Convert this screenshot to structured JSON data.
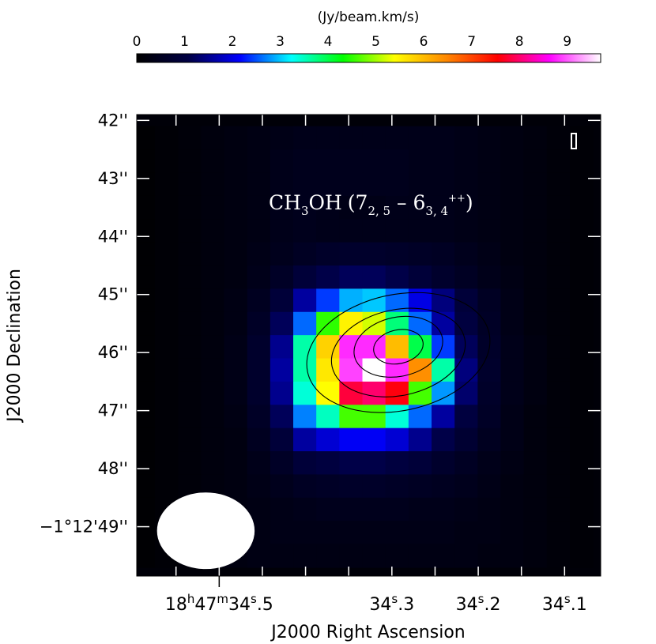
{
  "chart_data": {
    "type": "heatmap",
    "title": "CH3OH (7 2,5 - 6 3,4 ++)",
    "line_label": {
      "molecule_prefix": "CH",
      "molecule_sub": "3",
      "molecule_suffix": "OH",
      "open": "(7",
      "upper_sub": "2, 5",
      "dash": " – 6",
      "lower_sub": "3, 4",
      "lower_sup": "++",
      "close": ")"
    },
    "colorbar": {
      "label": "(Jy/beam.km/s)",
      "min": 0,
      "max": 9.7,
      "ticks": [
        0,
        1,
        2,
        3,
        4,
        5,
        6,
        7,
        8,
        9
      ],
      "tick_labels": [
        "0",
        "1",
        "2",
        "3",
        "4",
        "5",
        "6",
        "7",
        "8",
        "9"
      ],
      "colormap": [
        "#000000",
        "#000044",
        "#0000ff",
        "#00ffff",
        "#00ff00",
        "#ffff00",
        "#ff8800",
        "#ff0000",
        "#ff00ff",
        "#ffffff"
      ]
    },
    "xlabel": "J2000 Right Ascension",
    "ylabel": "J2000 Declination",
    "x_ticks": [
      {
        "value": 34.5,
        "pre": "18",
        "h": "h",
        "mid": "47",
        "m": "m",
        "post": "34",
        "s": "s",
        "frac": ".5"
      },
      {
        "value": 34.3,
        "pre": "",
        "h": "",
        "mid": "",
        "m": "",
        "post": "34",
        "s": "s",
        "frac": ".3"
      },
      {
        "value": 34.2,
        "pre": "",
        "h": "",
        "mid": "",
        "m": "",
        "post": "34",
        "s": "s",
        "frac": ".2"
      },
      {
        "value": 34.1,
        "pre": "",
        "h": "",
        "mid": "",
        "m": "",
        "post": "34",
        "s": "s",
        "frac": ".1"
      }
    ],
    "y_ticks": [
      {
        "value": 42,
        "label": "42''"
      },
      {
        "value": 43,
        "label": "43''"
      },
      {
        "value": 44,
        "label": "44''"
      },
      {
        "value": 45,
        "label": "45''"
      },
      {
        "value": 46,
        "label": "46''"
      },
      {
        "value": 47,
        "label": "47''"
      },
      {
        "value": 48,
        "label": "48''"
      },
      {
        "value": 49,
        "label": "−1°12'49''"
      }
    ],
    "x_range_s": [
      34.5955,
      34.0582
    ],
    "y_range_arcsec": [
      41.9,
      49.85
    ],
    "peak": {
      "ra_s": 34.285,
      "dec_arcsec": 46.1,
      "value": 9.7
    },
    "grid_ra_s": [
      34.5878,
      34.5611,
      34.5344,
      34.5077,
      34.481,
      34.4543,
      34.4276,
      34.4009,
      34.3742,
      34.3475,
      34.3208,
      34.2941,
      34.2674,
      34.2407,
      34.214,
      34.1873,
      34.1606,
      34.1339,
      34.1072,
      34.0805
    ],
    "grid_dec_arcsec": [
      42.3,
      42.7,
      43.1,
      43.5,
      43.9,
      44.3,
      44.7,
      45.1,
      45.5,
      45.9,
      46.3,
      46.7,
      47.1,
      47.5,
      47.9,
      48.3,
      48.7,
      49.1,
      49.5
    ],
    "intensity_grid": [
      [
        0.05,
        0.1,
        0.15,
        0.2,
        0.25,
        0.3,
        0.35,
        0.4,
        0.4,
        0.4,
        0.4,
        0.4,
        0.4,
        0.4,
        0.35,
        0.3,
        0.25,
        0.2,
        0.15,
        0.1
      ],
      [
        0.05,
        0.1,
        0.15,
        0.2,
        0.25,
        0.3,
        0.4,
        0.45,
        0.45,
        0.45,
        0.45,
        0.45,
        0.4,
        0.4,
        0.35,
        0.3,
        0.25,
        0.2,
        0.15,
        0.1
      ],
      [
        0.05,
        0.1,
        0.15,
        0.2,
        0.25,
        0.3,
        0.4,
        0.45,
        0.45,
        0.45,
        0.45,
        0.45,
        0.4,
        0.4,
        0.35,
        0.3,
        0.25,
        0.2,
        0.15,
        0.1
      ],
      [
        0.05,
        0.1,
        0.15,
        0.2,
        0.25,
        0.3,
        0.4,
        0.45,
        0.4,
        0.35,
        0.35,
        0.4,
        0.4,
        0.4,
        0.35,
        0.3,
        0.25,
        0.2,
        0.15,
        0.1
      ],
      [
        0.05,
        0.1,
        0.15,
        0.2,
        0.25,
        0.3,
        0.4,
        0.45,
        0.4,
        0.4,
        0.4,
        0.4,
        0.4,
        0.4,
        0.35,
        0.3,
        0.25,
        0.2,
        0.15,
        0.1
      ],
      [
        0.05,
        0.1,
        0.15,
        0.2,
        0.25,
        0.35,
        0.45,
        0.55,
        0.65,
        0.7,
        0.7,
        0.65,
        0.6,
        0.55,
        0.45,
        0.35,
        0.25,
        0.2,
        0.15,
        0.1
      ],
      [
        0.05,
        0.1,
        0.15,
        0.2,
        0.25,
        0.4,
        0.6,
        0.9,
        1.1,
        1.2,
        1.2,
        1.1,
        0.9,
        0.7,
        0.55,
        0.4,
        0.3,
        0.2,
        0.15,
        0.1
      ],
      [
        0.05,
        0.1,
        0.15,
        0.2,
        0.3,
        0.5,
        0.9,
        1.6,
        2.4,
        2.9,
        3.0,
        2.6,
        2.0,
        1.4,
        0.9,
        0.55,
        0.35,
        0.2,
        0.15,
        0.1
      ],
      [
        0.05,
        0.1,
        0.15,
        0.2,
        0.3,
        0.6,
        1.2,
        2.6,
        4.5,
        5.5,
        5.2,
        3.8,
        2.6,
        1.6,
        1.0,
        0.6,
        0.35,
        0.2,
        0.15,
        0.1
      ],
      [
        0.05,
        0.1,
        0.15,
        0.2,
        0.35,
        0.7,
        1.5,
        3.6,
        5.8,
        8.8,
        8.8,
        6.0,
        4.0,
        2.4,
        1.2,
        0.65,
        0.4,
        0.25,
        0.15,
        0.1
      ],
      [
        0.05,
        0.1,
        0.15,
        0.2,
        0.35,
        0.7,
        1.6,
        3.6,
        5.6,
        8.9,
        9.7,
        8.8,
        6.4,
        3.6,
        1.4,
        0.7,
        0.4,
        0.25,
        0.15,
        0.1
      ],
      [
        0.05,
        0.1,
        0.15,
        0.2,
        0.35,
        0.7,
        1.5,
        3.4,
        5.4,
        7.8,
        8.0,
        7.6,
        4.6,
        2.8,
        1.3,
        0.65,
        0.4,
        0.25,
        0.15,
        0.1
      ],
      [
        0.05,
        0.1,
        0.15,
        0.2,
        0.3,
        0.6,
        1.2,
        2.7,
        3.5,
        4.6,
        4.6,
        3.4,
        2.6,
        1.6,
        1.0,
        0.6,
        0.35,
        0.2,
        0.15,
        0.1
      ],
      [
        0.05,
        0.1,
        0.15,
        0.2,
        0.25,
        0.5,
        0.9,
        1.6,
        1.9,
        2.1,
        2.1,
        1.9,
        1.5,
        1.1,
        0.8,
        0.5,
        0.35,
        0.2,
        0.15,
        0.1
      ],
      [
        0.05,
        0.1,
        0.15,
        0.2,
        0.25,
        0.4,
        0.6,
        0.9,
        1.0,
        1.1,
        1.1,
        1.0,
        0.9,
        0.7,
        0.55,
        0.4,
        0.3,
        0.2,
        0.15,
        0.1
      ],
      [
        0.05,
        0.1,
        0.15,
        0.2,
        0.25,
        0.35,
        0.45,
        0.55,
        0.6,
        0.65,
        0.65,
        0.6,
        0.55,
        0.5,
        0.45,
        0.35,
        0.25,
        0.2,
        0.15,
        0.1
      ],
      [
        0.05,
        0.1,
        0.15,
        0.2,
        0.25,
        0.3,
        0.35,
        0.4,
        0.45,
        0.45,
        0.45,
        0.45,
        0.4,
        0.4,
        0.35,
        0.3,
        0.25,
        0.2,
        0.15,
        0.1
      ],
      [
        0.05,
        0.1,
        0.15,
        0.2,
        0.25,
        0.3,
        0.35,
        0.35,
        0.35,
        0.35,
        0.35,
        0.35,
        0.35,
        0.35,
        0.3,
        0.3,
        0.25,
        0.2,
        0.15,
        0.1
      ],
      [
        0.05,
        0.1,
        0.15,
        0.2,
        0.25,
        0.3,
        0.3,
        0.3,
        0.3,
        0.3,
        0.3,
        0.3,
        0.3,
        0.3,
        0.3,
        0.25,
        0.25,
        0.2,
        0.15,
        0.1
      ]
    ],
    "contours": [
      {
        "center_ra_s": 34.2925,
        "center_dec_arcsec": 46.0,
        "ra_radius_s": 0.1075,
        "dec_radius_arcsec": 1.0
      },
      {
        "center_ra_s": 34.2925,
        "center_dec_arcsec": 46.0,
        "ra_radius_s": 0.0785,
        "dec_radius_arcsec": 0.74
      },
      {
        "center_ra_s": 34.2925,
        "center_dec_arcsec": 45.9,
        "ra_radius_s": 0.052,
        "dec_radius_arcsec": 0.51
      },
      {
        "center_ra_s": 34.2925,
        "center_dec_arcsec": 45.9,
        "ra_radius_s": 0.029,
        "dec_radius_arcsec": 0.29
      }
    ],
    "beam": {
      "center_ra_s": 34.5155,
      "center_dec_arcsec": 49.07,
      "major_ra_s": 0.0565,
      "minor_dec_arcsec": 0.66
    }
  }
}
